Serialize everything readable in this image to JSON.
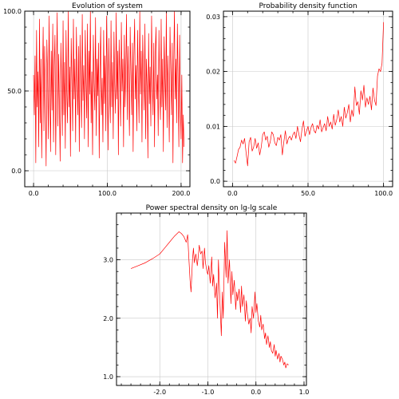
{
  "chart_data": [
    {
      "type": "line",
      "title": "Evolution of system",
      "xlim": [
        -12,
        212
      ],
      "ylim": [
        -10,
        100
      ],
      "xticks": [
        0,
        100,
        200
      ],
      "xtick_labels": [
        "0.0",
        "100.0",
        "200.0"
      ],
      "yticks": [
        0,
        50,
        100
      ],
      "ytick_labels": [
        "0.0",
        "50.0",
        "100.0"
      ],
      "grid": true,
      "color": "#ff0000",
      "x": [
        0,
        1,
        2,
        3,
        4,
        5,
        6,
        7,
        8,
        9,
        10,
        11,
        12,
        13,
        14,
        15,
        16,
        17,
        18,
        19,
        20,
        21,
        22,
        23,
        24,
        25,
        26,
        27,
        28,
        29,
        30,
        31,
        32,
        33,
        34,
        35,
        36,
        37,
        38,
        39,
        40,
        41,
        42,
        43,
        44,
        45,
        46,
        47,
        48,
        49,
        50,
        51,
        52,
        53,
        54,
        55,
        56,
        57,
        58,
        59,
        60,
        61,
        62,
        63,
        64,
        65,
        66,
        67,
        68,
        69,
        70,
        71,
        72,
        73,
        74,
        75,
        76,
        77,
        78,
        79,
        80,
        81,
        82,
        83,
        84,
        85,
        86,
        87,
        88,
        89,
        90,
        91,
        92,
        93,
        94,
        95,
        96,
        97,
        98,
        99,
        100,
        101,
        102,
        103,
        104,
        105,
        106,
        107,
        108,
        109,
        110,
        111,
        112,
        113,
        114,
        115,
        116,
        117,
        118,
        119,
        120,
        121,
        122,
        123,
        124,
        125,
        126,
        127,
        128,
        129,
        130,
        131,
        132,
        133,
        134,
        135,
        136,
        137,
        138,
        139,
        140,
        141,
        142,
        143,
        144,
        145,
        146,
        147,
        148,
        149,
        150,
        151,
        152,
        153,
        154,
        155,
        156,
        157,
        158,
        159,
        160,
        161,
        162,
        163,
        164,
        165,
        166,
        167,
        168,
        169,
        170,
        171,
        172,
        173,
        174,
        175,
        176,
        177,
        178,
        179,
        180,
        181,
        182,
        183,
        184,
        185,
        186,
        187,
        188,
        189,
        190,
        191,
        192,
        193,
        194,
        195,
        196,
        197,
        198,
        199,
        200,
        201,
        202,
        203,
        204
      ],
      "values": [
        60,
        35,
        72,
        5,
        88,
        40,
        62,
        15,
        95,
        30,
        70,
        8,
        55,
        90,
        25,
        78,
        45,
        3,
        82,
        60,
        20,
        97,
        50,
        12,
        75,
        38,
        92,
        18,
        66,
        85,
        10,
        58,
        99,
        28,
        73,
        42,
        6,
        80,
        55,
        22,
        94,
        35,
        68,
        14,
        88,
        50,
        30,
        100,
        40,
        65,
        9,
        83,
        57,
        25,
        95,
        45,
        70,
        18,
        90,
        60,
        35,
        78,
        12,
        85,
        52,
        27,
        98,
        44,
        66,
        20,
        88,
        58,
        33,
        92,
        15,
        75,
        48,
        100,
        30,
        62,
        10,
        85,
        55,
        38,
        96,
        22,
        70,
        47,
        80,
        8,
        65,
        90,
        35,
        58,
        18,
        88,
        42,
        72,
        25,
        97,
        60,
        13,
        83,
        50,
        30,
        94,
        40,
        68,
        20,
        87,
        55,
        36,
        99,
        45,
        75,
        10,
        82,
        58,
        28,
        93,
        50,
        70,
        15,
        85,
        40,
        64,
        98,
        32,
        78,
        50,
        22,
        90,
        60,
        35,
        80,
        12,
        72,
        95,
        45,
        66,
        25,
        88,
        55,
        30,
        100,
        48,
        75,
        18,
        85,
        62,
        38,
        92,
        20,
        70,
        52,
        8,
        86,
        42,
        65,
        28,
        97,
        58,
        35,
        80,
        15,
        73,
        90,
        45,
        60,
        22,
        88,
        50,
        32,
        95,
        40,
        70,
        12,
        84,
        60,
        38,
        100,
        27,
        72,
        50,
        18,
        90,
        62,
        35,
        80,
        5,
        68,
        100,
        45,
        70,
        30,
        92,
        55,
        15,
        85,
        40,
        20,
        60,
        5,
        35,
        15
      ]
    },
    {
      "type": "line",
      "title": "Probability density function",
      "xlim": [
        -6,
        106
      ],
      "ylim": [
        -0.001,
        0.031
      ],
      "xticks": [
        0,
        50,
        100
      ],
      "xtick_labels": [
        "0.0",
        "50.0",
        "100.0"
      ],
      "yticks": [
        0,
        0.01,
        0.02,
        0.03
      ],
      "ytick_labels": [
        "0.0",
        "0.01",
        "0.02",
        "0.03"
      ],
      "grid": true,
      "color": "#ff0000",
      "x": [
        1,
        2,
        3,
        4,
        5,
        6,
        7,
        8,
        9,
        10,
        11,
        12,
        13,
        14,
        15,
        16,
        17,
        18,
        19,
        20,
        21,
        22,
        23,
        24,
        25,
        26,
        27,
        28,
        29,
        30,
        31,
        32,
        33,
        34,
        35,
        36,
        37,
        38,
        39,
        40,
        41,
        42,
        43,
        44,
        45,
        46,
        47,
        48,
        49,
        50,
        51,
        52,
        53,
        54,
        55,
        56,
        57,
        58,
        59,
        60,
        61,
        62,
        63,
        64,
        65,
        66,
        67,
        68,
        69,
        70,
        71,
        72,
        73,
        74,
        75,
        76,
        77,
        78,
        79,
        80,
        81,
        82,
        83,
        84,
        85,
        86,
        87,
        88,
        89,
        90,
        91,
        92,
        93,
        94,
        95,
        96,
        97,
        98,
        99,
        100
      ],
      "values": [
        0.0038,
        0.0033,
        0.0045,
        0.0058,
        0.0062,
        0.0075,
        0.0068,
        0.0078,
        0.0052,
        0.0028,
        0.0072,
        0.008,
        0.0055,
        0.0062,
        0.0078,
        0.006,
        0.007,
        0.0048,
        0.0062,
        0.0085,
        0.009,
        0.0075,
        0.0082,
        0.0062,
        0.0072,
        0.009,
        0.0085,
        0.007,
        0.0065,
        0.008,
        0.0075,
        0.0085,
        0.0048,
        0.0072,
        0.0092,
        0.0068,
        0.0078,
        0.0082,
        0.0075,
        0.0085,
        0.009,
        0.0078,
        0.01,
        0.0085,
        0.0072,
        0.0095,
        0.011,
        0.0082,
        0.0092,
        0.01,
        0.0085,
        0.0098,
        0.0105,
        0.0092,
        0.0088,
        0.0102,
        0.0095,
        0.0112,
        0.009,
        0.0098,
        0.0105,
        0.0092,
        0.0118,
        0.01,
        0.0108,
        0.0095,
        0.0122,
        0.0102,
        0.0112,
        0.013,
        0.0108,
        0.0118,
        0.01,
        0.0135,
        0.0115,
        0.0125,
        0.014,
        0.0108,
        0.013,
        0.0118,
        0.0172,
        0.0138,
        0.0145,
        0.0122,
        0.0165,
        0.0148,
        0.0175,
        0.0135,
        0.0152,
        0.014,
        0.0155,
        0.013,
        0.017,
        0.0148,
        0.0138,
        0.0192,
        0.0205,
        0.02,
        0.0215,
        0.029
      ]
    },
    {
      "type": "line",
      "title": "Power spectral density on lg-lg scale",
      "xlim": [
        -2.9,
        1.05
      ],
      "ylim": [
        0.85,
        3.8
      ],
      "xticks": [
        -2,
        -1,
        0,
        1
      ],
      "xtick_labels": [
        "-2.0",
        "-1.0",
        "0.0",
        "1.0"
      ],
      "yticks": [
        1,
        2,
        3
      ],
      "ytick_labels": [
        "1.0",
        "2.0",
        "3.0"
      ],
      "grid": true,
      "color": "#ff0000",
      "x": [
        -2.6,
        -2.45,
        -2.3,
        -2.15,
        -2.0,
        -1.9,
        -1.8,
        -1.7,
        -1.6,
        -1.55,
        -1.5,
        -1.45,
        -1.42,
        -1.4,
        -1.37,
        -1.35,
        -1.32,
        -1.3,
        -1.28,
        -1.25,
        -1.22,
        -1.2,
        -1.18,
        -1.15,
        -1.12,
        -1.1,
        -1.07,
        -1.05,
        -1.02,
        -1.0,
        -0.98,
        -0.95,
        -0.92,
        -0.9,
        -0.88,
        -0.85,
        -0.82,
        -0.8,
        -0.78,
        -0.75,
        -0.72,
        -0.7,
        -0.68,
        -0.65,
        -0.62,
        -0.6,
        -0.58,
        -0.55,
        -0.52,
        -0.5,
        -0.48,
        -0.45,
        -0.42,
        -0.4,
        -0.38,
        -0.35,
        -0.32,
        -0.3,
        -0.28,
        -0.25,
        -0.22,
        -0.2,
        -0.18,
        -0.15,
        -0.12,
        -0.1,
        -0.08,
        -0.05,
        -0.02,
        0.0,
        0.02,
        0.05,
        0.08,
        0.1,
        0.12,
        0.15,
        0.18,
        0.2,
        0.22,
        0.25,
        0.28,
        0.3,
        0.32,
        0.35,
        0.38,
        0.4,
        0.42,
        0.45,
        0.48,
        0.5,
        0.52,
        0.55,
        0.58,
        0.6,
        0.62,
        0.65,
        0.68
      ],
      "values": [
        2.85,
        2.9,
        2.95,
        3.02,
        3.1,
        3.2,
        3.3,
        3.4,
        3.48,
        3.45,
        3.4,
        3.3,
        3.43,
        3.1,
        2.65,
        2.45,
        3.0,
        3.2,
        2.95,
        3.1,
        2.9,
        3.05,
        3.25,
        3.1,
        3.15,
        2.85,
        3.2,
        2.95,
        2.8,
        2.75,
        2.9,
        2.6,
        3.05,
        2.55,
        2.75,
        2.35,
        2.6,
        2.0,
        3.0,
        2.3,
        1.7,
        2.45,
        2.0,
        3.3,
        2.7,
        3.5,
        2.6,
        3.0,
        2.25,
        2.8,
        2.4,
        2.65,
        2.15,
        2.45,
        2.3,
        2.5,
        2.1,
        2.55,
        2.2,
        2.4,
        1.95,
        2.3,
        2.1,
        1.9,
        2.0,
        1.75,
        2.2,
        2.0,
        2.45,
        2.1,
        2.25,
        1.95,
        1.85,
        2.05,
        1.8,
        1.9,
        1.65,
        1.75,
        1.55,
        1.7,
        1.5,
        1.6,
        1.45,
        1.4,
        1.55,
        1.35,
        1.45,
        1.3,
        1.4,
        1.25,
        1.35,
        1.3,
        1.2,
        1.25,
        1.15,
        1.22,
        1.2
      ]
    }
  ]
}
